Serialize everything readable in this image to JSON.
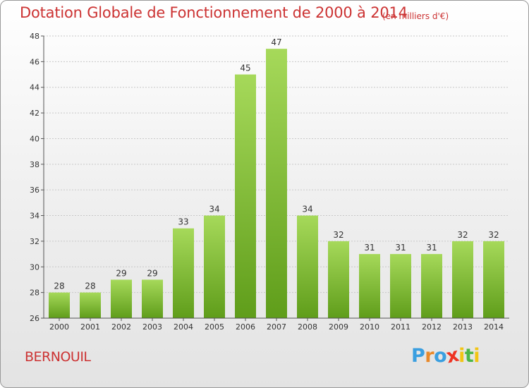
{
  "title": "Dotation Globale de Fonctionnement de 2000 à 2014",
  "subtitle": "(en milliers d'€)",
  "commune": "BERNOUIL",
  "logo": {
    "letters": [
      "P",
      "r",
      "o",
      "x",
      "i",
      "t",
      "i"
    ],
    "colors": [
      "#3a9fe0",
      "#e8892a",
      "#3a9fe0",
      "#ee3322",
      "#f2c515",
      "#4cb648",
      "#f2c515"
    ]
  },
  "colors": {
    "bar_top": "#a6d95a",
    "bar_bottom": "#5f9d1a",
    "grid": "#c8c8c8",
    "axis": "#555555",
    "text_red": "#cc3333"
  },
  "chart_data": {
    "type": "bar",
    "title": "Dotation Globale de Fonctionnement de 2000 à 2014",
    "subtitle": "(en milliers d'€)",
    "categories": [
      "2000",
      "2001",
      "2002",
      "2003",
      "2004",
      "2005",
      "2006",
      "2007",
      "2008",
      "2009",
      "2010",
      "2011",
      "2012",
      "2013",
      "2014"
    ],
    "values": [
      28,
      28,
      29,
      29,
      33,
      34,
      45,
      47,
      34,
      32,
      31,
      31,
      31,
      32,
      32
    ],
    "ylim": [
      26,
      48
    ],
    "yticks": [
      26,
      28,
      30,
      32,
      34,
      36,
      38,
      40,
      42,
      44,
      46,
      48
    ],
    "grid": true,
    "data_labels": true
  }
}
